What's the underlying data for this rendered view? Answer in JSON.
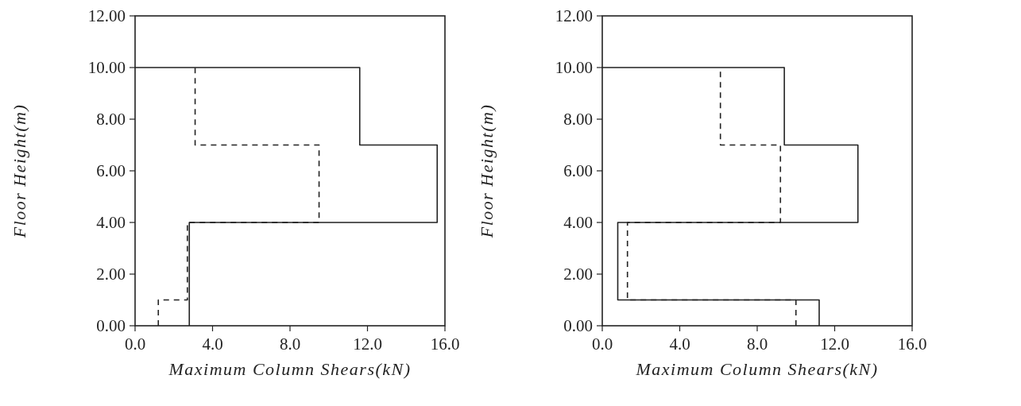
{
  "chart_data": [
    {
      "type": "line",
      "xlabel": "Maximum Column Shears(kN)",
      "ylabel": "Floor Height(m)",
      "xlim": [
        0,
        16
      ],
      "xticks": [
        {
          "value": 0,
          "label": "0.0"
        },
        {
          "value": 4,
          "label": "4.0"
        },
        {
          "value": 8,
          "label": "8.0"
        },
        {
          "value": 12,
          "label": "12.0"
        },
        {
          "value": 16,
          "label": "16.0"
        }
      ],
      "ylim": [
        0,
        12
      ],
      "yticks": [
        {
          "value": 0,
          "label": "0.00"
        },
        {
          "value": 2,
          "label": "2.00"
        },
        {
          "value": 4,
          "label": "4.00"
        },
        {
          "value": 6,
          "label": "6.00"
        },
        {
          "value": 8,
          "label": "8.00"
        },
        {
          "value": 10,
          "label": "10.00"
        },
        {
          "value": 12,
          "label": "12.00"
        }
      ],
      "grid": false,
      "series": [
        {
          "color": "#222222",
          "line_style": "solid",
          "x": [
            2.8,
            2.8,
            15.6,
            15.6,
            11.6,
            11.6,
            0
          ],
          "values": [
            0,
            4,
            4,
            7,
            7,
            10,
            10
          ]
        },
        {
          "color": "#222222",
          "line_style": "dashed",
          "x": [
            1.2,
            1.2,
            2.7,
            2.7,
            9.5,
            9.5,
            3.1,
            3.1
          ],
          "values": [
            0,
            1,
            1,
            4,
            4,
            7,
            7,
            10
          ]
        }
      ]
    },
    {
      "type": "line",
      "xlabel": "Maximum Column Shears(kN)",
      "ylabel": "Floor Height(m)",
      "xlim": [
        0,
        16
      ],
      "xticks": [
        {
          "value": 0,
          "label": "0.0"
        },
        {
          "value": 4,
          "label": "4.0"
        },
        {
          "value": 8,
          "label": "8.0"
        },
        {
          "value": 12,
          "label": "12.0"
        },
        {
          "value": 16,
          "label": "16.0"
        }
      ],
      "ylim": [
        0,
        12
      ],
      "yticks": [
        {
          "value": 0,
          "label": "0.00"
        },
        {
          "value": 2,
          "label": "2.00"
        },
        {
          "value": 4,
          "label": "4.00"
        },
        {
          "value": 6,
          "label": "6.00"
        },
        {
          "value": 8,
          "label": "8.00"
        },
        {
          "value": 10,
          "label": "10.00"
        },
        {
          "value": 12,
          "label": "12.00"
        }
      ],
      "grid": false,
      "series": [
        {
          "color": "#222222",
          "line_style": "solid",
          "x": [
            11.2,
            11.2,
            0.8,
            0.8,
            13.2,
            13.2,
            9.4,
            9.4,
            0
          ],
          "values": [
            0,
            1,
            1,
            4,
            4,
            7,
            7,
            10,
            10
          ]
        },
        {
          "color": "#222222",
          "line_style": "dashed",
          "x": [
            10.0,
            10.0,
            1.3,
            1.3,
            9.2,
            9.2,
            6.1,
            6.1
          ],
          "values": [
            0,
            1,
            1,
            4,
            4,
            7,
            7,
            10
          ]
        }
      ]
    }
  ]
}
